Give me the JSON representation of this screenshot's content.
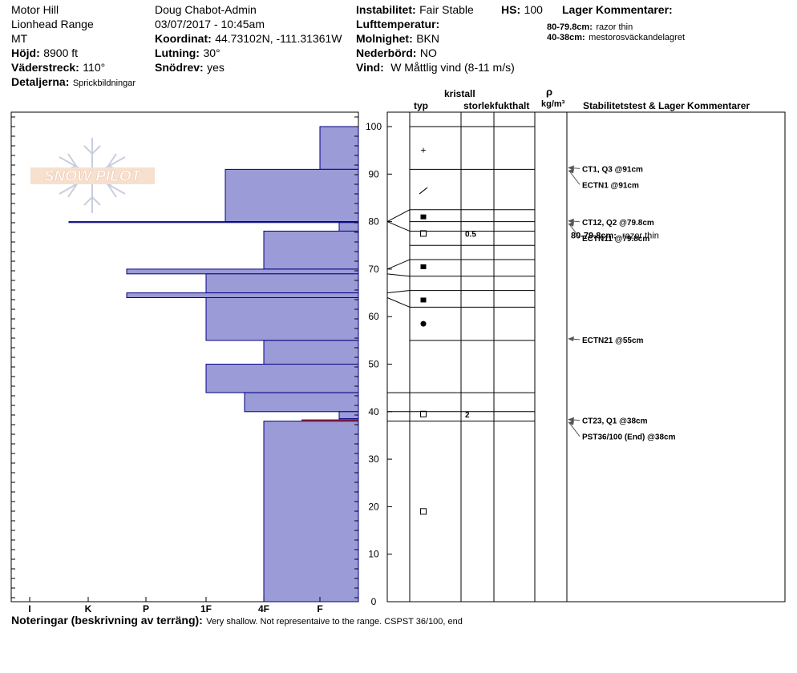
{
  "header": {
    "site": "Motor Hill",
    "range": "Lionhead Range",
    "state": "MT",
    "elevation_label": "Höjd:",
    "elevation_value": "8900 ft",
    "aspect_label": "Väderstreck:",
    "aspect_value": "110°",
    "details_label": "Detaljerna:",
    "details_value": "Sprickbildningar",
    "observer": "Doug Chabot-Admin",
    "datetime": "03/07/2017 - 10:45am",
    "coord_label": "Koordinat:",
    "coord_value": "44.73102N, -111.31361W",
    "slope_label": "Lutning:",
    "slope_value": "30°",
    "wind_loading_label": "Snödrev:",
    "wind_loading_value": "yes",
    "stability_label": "Instabilitet:",
    "stability_value": "Fair Stable",
    "hs_label": "HS:",
    "hs_value": "100",
    "air_temp_label": "Lufttemperatur:",
    "sky_label": "Molnighet:",
    "sky_value": "BKN",
    "precip_label": "Nederbörd:",
    "precip_value": "NO",
    "wind_label": "Vind:",
    "wind_value": "W Måttlig vind (8-11 m/s)",
    "layer_comments_title": "Lager Kommentarer:",
    "layer_comments": [
      {
        "label": "80-79.8cm:",
        "text": "razor thin"
      },
      {
        "label": "40-38cm:",
        "text": "mestorosväckandelagret"
      }
    ]
  },
  "logo_text": "SNOW PILOT",
  "columns": {
    "crystal": "kristall",
    "type": "typ",
    "size": "storlek",
    "moisture": "fukthalt",
    "rho": "ρ",
    "density_unit": "kg/m³",
    "tests_header": "Stabilitetstest & Lager Kommentarer"
  },
  "notes": {
    "label": "Noteringar (beskrivning av terräng):",
    "text": "Very shallow. Not representaive to the range. CSPST 36/100, end"
  },
  "colors": {
    "fill": "#9b9bd8",
    "edge": "#000080",
    "weak_layer": "#8b1a2e"
  },
  "chart_data": {
    "type": "bar",
    "orientation": "horizontal",
    "title": "",
    "ylabel": "",
    "ylim": [
      0,
      100
    ],
    "y_ticks": [
      0,
      10,
      20,
      30,
      40,
      50,
      60,
      70,
      80,
      90,
      100
    ],
    "x_categories": [
      "I",
      "K",
      "P",
      "1F",
      "4F",
      "F"
    ],
    "hardness_profile": [
      {
        "bottom": 91,
        "top": 100,
        "hardness": "F"
      },
      {
        "bottom": 80,
        "top": 91,
        "hardness": "1F+"
      },
      {
        "bottom": 79.8,
        "top": 80,
        "hardness": "K-"
      },
      {
        "bottom": 78,
        "top": 79.8,
        "hardness": "F+"
      },
      {
        "bottom": 70,
        "top": 78,
        "hardness": "4F"
      },
      {
        "bottom": 69,
        "top": 70,
        "hardness": "P-"
      },
      {
        "bottom": 65,
        "top": 69,
        "hardness": "1F"
      },
      {
        "bottom": 64,
        "top": 65,
        "hardness": "P-"
      },
      {
        "bottom": 55,
        "top": 64,
        "hardness": "1F"
      },
      {
        "bottom": 50,
        "top": 55,
        "hardness": "4F"
      },
      {
        "bottom": 44,
        "top": 50,
        "hardness": "1F"
      },
      {
        "bottom": 40,
        "top": 44,
        "hardness": "4F-"
      },
      {
        "bottom": 38.5,
        "top": 40,
        "hardness": "F+"
      },
      {
        "bottom": 38,
        "top": 38.5,
        "hardness": "F+"
      },
      {
        "bottom": 0,
        "top": 38,
        "hardness": "4F"
      }
    ],
    "weak_layer_at": 38.2,
    "layer_boundaries": [
      100,
      91,
      82.5,
      80,
      78,
      75,
      72,
      68.5,
      65.5,
      62,
      55,
      44,
      40,
      38
    ],
    "crystals": [
      {
        "depth": 95,
        "symbol": "+",
        "size": ""
      },
      {
        "depth": 86.5,
        "symbol": "/",
        "size": ""
      },
      {
        "depth": 81,
        "symbol": "■",
        "size": ""
      },
      {
        "depth": 77.5,
        "symbol": "□",
        "size": "0.5"
      },
      {
        "depth": 70.5,
        "symbol": "■",
        "size": ""
      },
      {
        "depth": 63.5,
        "symbol": "■",
        "size": ""
      },
      {
        "depth": 58.5,
        "symbol": "●",
        "size": ""
      },
      {
        "depth": 39.5,
        "symbol": "□",
        "size": "2"
      },
      {
        "depth": 19,
        "symbol": "□",
        "size": ""
      }
    ],
    "tests": [
      {
        "depth": 91,
        "lines": [
          "CT1, Q3 @91cm",
          "ECTN1 @91cm"
        ]
      },
      {
        "depth": 79.8,
        "lines": [
          "CT12, Q2 @79.8cm",
          "ECTN11 @79.8cm"
        ]
      },
      {
        "depth": 55,
        "lines": [
          "ECTN21 @55cm"
        ]
      },
      {
        "depth": 38,
        "lines": [
          "CT23, Q1 @38cm",
          "PST36/100 (End) @38cm"
        ]
      }
    ],
    "layer_comment": {
      "label": "80-79.8cm:",
      "text": "razor thin"
    }
  }
}
